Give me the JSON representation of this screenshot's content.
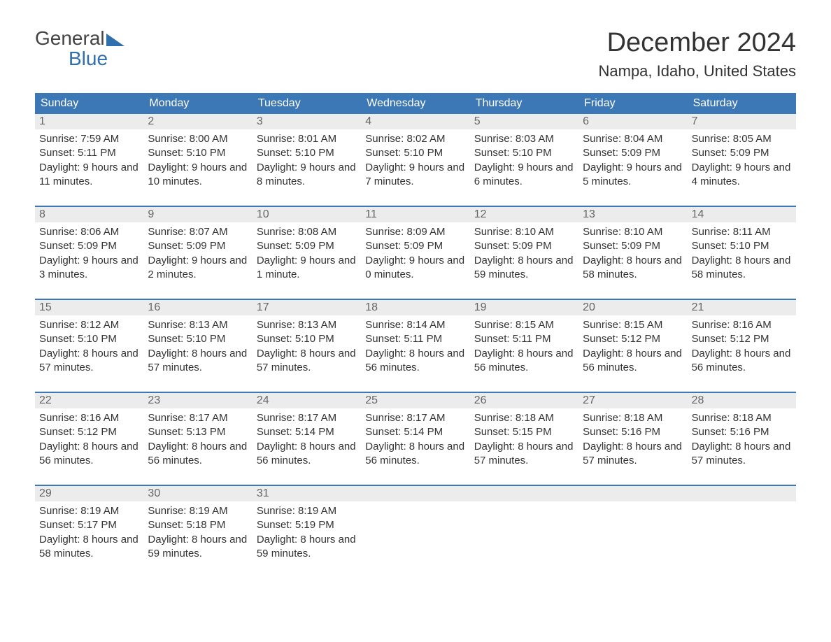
{
  "brand": {
    "word1": "General",
    "word2": "Blue"
  },
  "title": "December 2024",
  "location": "Nampa, Idaho, United States",
  "colors": {
    "header_bg": "#3b78b5",
    "header_text": "#ffffff",
    "week_border": "#3b78b5",
    "daynum_bg": "#ececec",
    "daynum_text": "#666666",
    "body_text": "#333333",
    "logo_accent": "#2f6fae",
    "background": "#ffffff"
  },
  "typography": {
    "title_fontsize": 38,
    "location_fontsize": 22,
    "header_fontsize": 16,
    "daynum_fontsize": 16,
    "body_fontsize": 15,
    "logo_fontsize": 28
  },
  "day_names": [
    "Sunday",
    "Monday",
    "Tuesday",
    "Wednesday",
    "Thursday",
    "Friday",
    "Saturday"
  ],
  "labels": {
    "sunrise": "Sunrise:",
    "sunset": "Sunset:",
    "daylight": "Daylight:"
  },
  "weeks": [
    [
      {
        "n": "1",
        "sunrise": "7:59 AM",
        "sunset": "5:11 PM",
        "daylight": "9 hours and 11 minutes."
      },
      {
        "n": "2",
        "sunrise": "8:00 AM",
        "sunset": "5:10 PM",
        "daylight": "9 hours and 10 minutes."
      },
      {
        "n": "3",
        "sunrise": "8:01 AM",
        "sunset": "5:10 PM",
        "daylight": "9 hours and 8 minutes."
      },
      {
        "n": "4",
        "sunrise": "8:02 AM",
        "sunset": "5:10 PM",
        "daylight": "9 hours and 7 minutes."
      },
      {
        "n": "5",
        "sunrise": "8:03 AM",
        "sunset": "5:10 PM",
        "daylight": "9 hours and 6 minutes."
      },
      {
        "n": "6",
        "sunrise": "8:04 AM",
        "sunset": "5:09 PM",
        "daylight": "9 hours and 5 minutes."
      },
      {
        "n": "7",
        "sunrise": "8:05 AM",
        "sunset": "5:09 PM",
        "daylight": "9 hours and 4 minutes."
      }
    ],
    [
      {
        "n": "8",
        "sunrise": "8:06 AM",
        "sunset": "5:09 PM",
        "daylight": "9 hours and 3 minutes."
      },
      {
        "n": "9",
        "sunrise": "8:07 AM",
        "sunset": "5:09 PM",
        "daylight": "9 hours and 2 minutes."
      },
      {
        "n": "10",
        "sunrise": "8:08 AM",
        "sunset": "5:09 PM",
        "daylight": "9 hours and 1 minute."
      },
      {
        "n": "11",
        "sunrise": "8:09 AM",
        "sunset": "5:09 PM",
        "daylight": "9 hours and 0 minutes."
      },
      {
        "n": "12",
        "sunrise": "8:10 AM",
        "sunset": "5:09 PM",
        "daylight": "8 hours and 59 minutes."
      },
      {
        "n": "13",
        "sunrise": "8:10 AM",
        "sunset": "5:09 PM",
        "daylight": "8 hours and 58 minutes."
      },
      {
        "n": "14",
        "sunrise": "8:11 AM",
        "sunset": "5:10 PM",
        "daylight": "8 hours and 58 minutes."
      }
    ],
    [
      {
        "n": "15",
        "sunrise": "8:12 AM",
        "sunset": "5:10 PM",
        "daylight": "8 hours and 57 minutes."
      },
      {
        "n": "16",
        "sunrise": "8:13 AM",
        "sunset": "5:10 PM",
        "daylight": "8 hours and 57 minutes."
      },
      {
        "n": "17",
        "sunrise": "8:13 AM",
        "sunset": "5:10 PM",
        "daylight": "8 hours and 57 minutes."
      },
      {
        "n": "18",
        "sunrise": "8:14 AM",
        "sunset": "5:11 PM",
        "daylight": "8 hours and 56 minutes."
      },
      {
        "n": "19",
        "sunrise": "8:15 AM",
        "sunset": "5:11 PM",
        "daylight": "8 hours and 56 minutes."
      },
      {
        "n": "20",
        "sunrise": "8:15 AM",
        "sunset": "5:12 PM",
        "daylight": "8 hours and 56 minutes."
      },
      {
        "n": "21",
        "sunrise": "8:16 AM",
        "sunset": "5:12 PM",
        "daylight": "8 hours and 56 minutes."
      }
    ],
    [
      {
        "n": "22",
        "sunrise": "8:16 AM",
        "sunset": "5:12 PM",
        "daylight": "8 hours and 56 minutes."
      },
      {
        "n": "23",
        "sunrise": "8:17 AM",
        "sunset": "5:13 PM",
        "daylight": "8 hours and 56 minutes."
      },
      {
        "n": "24",
        "sunrise": "8:17 AM",
        "sunset": "5:14 PM",
        "daylight": "8 hours and 56 minutes."
      },
      {
        "n": "25",
        "sunrise": "8:17 AM",
        "sunset": "5:14 PM",
        "daylight": "8 hours and 56 minutes."
      },
      {
        "n": "26",
        "sunrise": "8:18 AM",
        "sunset": "5:15 PM",
        "daylight": "8 hours and 57 minutes."
      },
      {
        "n": "27",
        "sunrise": "8:18 AM",
        "sunset": "5:16 PM",
        "daylight": "8 hours and 57 minutes."
      },
      {
        "n": "28",
        "sunrise": "8:18 AM",
        "sunset": "5:16 PM",
        "daylight": "8 hours and 57 minutes."
      }
    ],
    [
      {
        "n": "29",
        "sunrise": "8:19 AM",
        "sunset": "5:17 PM",
        "daylight": "8 hours and 58 minutes."
      },
      {
        "n": "30",
        "sunrise": "8:19 AM",
        "sunset": "5:18 PM",
        "daylight": "8 hours and 59 minutes."
      },
      {
        "n": "31",
        "sunrise": "8:19 AM",
        "sunset": "5:19 PM",
        "daylight": "8 hours and 59 minutes."
      },
      null,
      null,
      null,
      null
    ]
  ]
}
